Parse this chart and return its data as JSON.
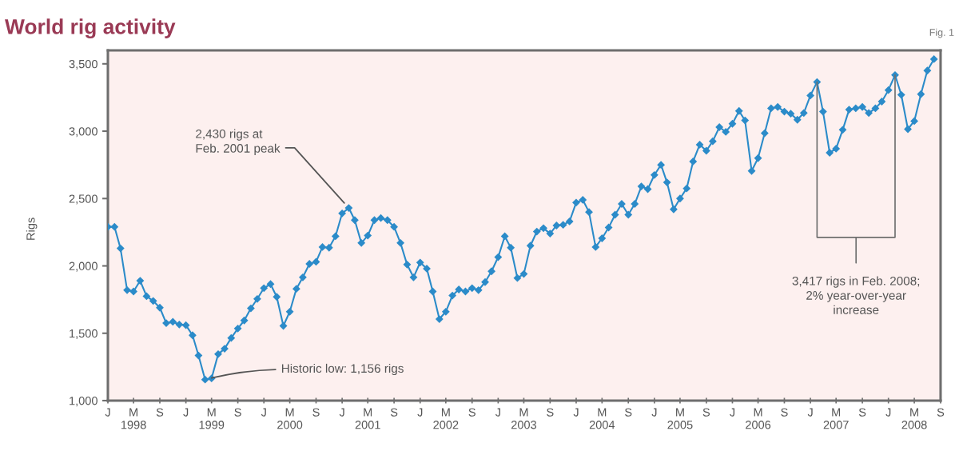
{
  "chart_data": {
    "type": "line",
    "title": "World rig activity",
    "ylabel": "Rigs",
    "x": [
      "1998-01",
      "1998-02",
      "1998-03",
      "1998-04",
      "1998-05",
      "1998-06",
      "1998-07",
      "1998-08",
      "1998-09",
      "1998-10",
      "1998-11",
      "1998-12",
      "1999-01",
      "1999-02",
      "1999-03",
      "1999-04",
      "1999-05",
      "1999-06",
      "1999-07",
      "1999-08",
      "1999-09",
      "1999-10",
      "1999-11",
      "1999-12",
      "2000-01",
      "2000-02",
      "2000-03",
      "2000-04",
      "2000-05",
      "2000-06",
      "2000-07",
      "2000-08",
      "2000-09",
      "2000-10",
      "2000-11",
      "2000-12",
      "2001-01",
      "2001-02",
      "2001-03",
      "2001-04",
      "2001-05",
      "2001-06",
      "2001-07",
      "2001-08",
      "2001-09",
      "2001-10",
      "2001-11",
      "2001-12",
      "2002-01",
      "2002-02",
      "2002-03",
      "2002-04",
      "2002-05",
      "2002-06",
      "2002-07",
      "2002-08",
      "2002-09",
      "2002-10",
      "2002-11",
      "2002-12",
      "2003-01",
      "2003-02",
      "2003-03",
      "2003-04",
      "2003-05",
      "2003-06",
      "2003-07",
      "2003-08",
      "2003-09",
      "2003-10",
      "2003-11",
      "2003-12",
      "2004-01",
      "2004-02",
      "2004-03",
      "2004-04",
      "2004-05",
      "2004-06",
      "2004-07",
      "2004-08",
      "2004-09",
      "2004-10",
      "2004-11",
      "2004-12",
      "2005-01",
      "2005-02",
      "2005-03",
      "2005-04",
      "2005-05",
      "2005-06",
      "2005-07",
      "2005-08",
      "2005-09",
      "2005-10",
      "2005-11",
      "2005-12",
      "2006-01",
      "2006-02",
      "2006-03",
      "2006-04",
      "2006-05",
      "2006-06",
      "2006-07",
      "2006-08",
      "2006-09",
      "2006-10",
      "2006-11",
      "2006-12",
      "2007-01",
      "2007-02",
      "2007-03",
      "2007-04",
      "2007-05",
      "2007-06",
      "2007-07",
      "2007-08",
      "2007-09",
      "2007-10",
      "2007-11",
      "2007-12",
      "2008-01",
      "2008-02",
      "2008-03",
      "2008-04",
      "2008-05",
      "2008-06",
      "2008-07",
      "2008-08"
    ],
    "series": [
      {
        "color": "#2b8bc9",
        "values": [
          2290,
          2290,
          2130,
          1820,
          1810,
          1890,
          1775,
          1740,
          1690,
          1575,
          1585,
          1565,
          1560,
          1485,
          1335,
          1156,
          1165,
          1345,
          1385,
          1465,
          1535,
          1595,
          1685,
          1755,
          1835,
          1865,
          1770,
          1555,
          1660,
          1830,
          1915,
          2015,
          2030,
          2140,
          2135,
          2220,
          2390,
          2430,
          2340,
          2170,
          2225,
          2340,
          2355,
          2340,
          2290,
          2170,
          2010,
          1915,
          2025,
          1980,
          1810,
          1605,
          1660,
          1780,
          1825,
          1810,
          1835,
          1820,
          1880,
          1960,
          2065,
          2220,
          2135,
          1910,
          1940,
          2150,
          2255,
          2280,
          2240,
          2300,
          2305,
          2330,
          2470,
          2490,
          2400,
          2140,
          2205,
          2285,
          2380,
          2460,
          2380,
          2460,
          2590,
          2570,
          2675,
          2750,
          2620,
          2420,
          2500,
          2575,
          2775,
          2900,
          2855,
          2925,
          3030,
          2995,
          3055,
          3150,
          3080,
          2705,
          2800,
          2985,
          3170,
          3180,
          3145,
          3130,
          3085,
          3135,
          3265,
          3365,
          3145,
          2840,
          2870,
          3010,
          3160,
          3170,
          3180,
          3135,
          3170,
          3220,
          3305,
          3417,
          3270,
          3015,
          3075,
          3275,
          3450,
          3535
        ]
      }
    ],
    "xlim": [
      "1998-01",
      "2008-09"
    ],
    "ylim": [
      1000,
      3600
    ],
    "xticks": [
      {
        "value": "1998-01",
        "label": "J"
      },
      {
        "value": "1998-05",
        "label": "M\n1998"
      },
      {
        "value": "1998-09",
        "label": "S"
      },
      {
        "value": "1999-01",
        "label": "J"
      },
      {
        "value": "1999-05",
        "label": "M\n1999"
      },
      {
        "value": "1999-09",
        "label": "S"
      },
      {
        "value": "2000-01",
        "label": "J"
      },
      {
        "value": "2000-05",
        "label": "M\n2000"
      },
      {
        "value": "2000-09",
        "label": "S"
      },
      {
        "value": "2001-01",
        "label": "J"
      },
      {
        "value": "2001-05",
        "label": "M\n2001"
      },
      {
        "value": "2001-09",
        "label": "S"
      },
      {
        "value": "2002-01",
        "label": "J"
      },
      {
        "value": "2002-05",
        "label": "M\n2002"
      },
      {
        "value": "2002-09",
        "label": "S"
      },
      {
        "value": "2003-01",
        "label": "J"
      },
      {
        "value": "2003-05",
        "label": "M\n2003"
      },
      {
        "value": "2003-09",
        "label": "S"
      },
      {
        "value": "2004-01",
        "label": "J"
      },
      {
        "value": "2004-05",
        "label": "M\n2004"
      },
      {
        "value": "2004-09",
        "label": "S"
      },
      {
        "value": "2005-01",
        "label": "J"
      },
      {
        "value": "2005-05",
        "label": "M\n2005"
      },
      {
        "value": "2005-09",
        "label": "S"
      },
      {
        "value": "2006-01",
        "label": "J"
      },
      {
        "value": "2006-05",
        "label": "M\n2006"
      },
      {
        "value": "2006-09",
        "label": "S"
      },
      {
        "value": "2007-01",
        "label": "J"
      },
      {
        "value": "2007-05",
        "label": "M\n2007"
      },
      {
        "value": "2007-09",
        "label": "S"
      },
      {
        "value": "2008-01",
        "label": "J"
      },
      {
        "value": "2008-05",
        "label": "M\n2008"
      },
      {
        "value": "2008-09",
        "label": "S"
      }
    ],
    "yticks": [
      {
        "value": 1000,
        "label": "1,000"
      },
      {
        "value": 1500,
        "label": "1,500"
      },
      {
        "value": 2000,
        "label": "2,000"
      },
      {
        "value": 2500,
        "label": "2,500"
      },
      {
        "value": 3000,
        "label": "3,000"
      },
      {
        "value": 3500,
        "label": "3,500"
      }
    ],
    "marker": "diamond",
    "line_style": "solid",
    "annotations": [
      {
        "text": "2,430 rigs at\nFeb. 2001 peak",
        "x": "2001-02",
        "y": 2430
      },
      {
        "text": "Historic low: 1,156 rigs",
        "x": "1999-04",
        "y": 1156
      },
      {
        "text": "3,417 rigs in Feb. 2008;\n2% year-over-year\nincrease",
        "x": "2008-02",
        "y": 3417
      },
      "Fig. 1"
    ]
  }
}
